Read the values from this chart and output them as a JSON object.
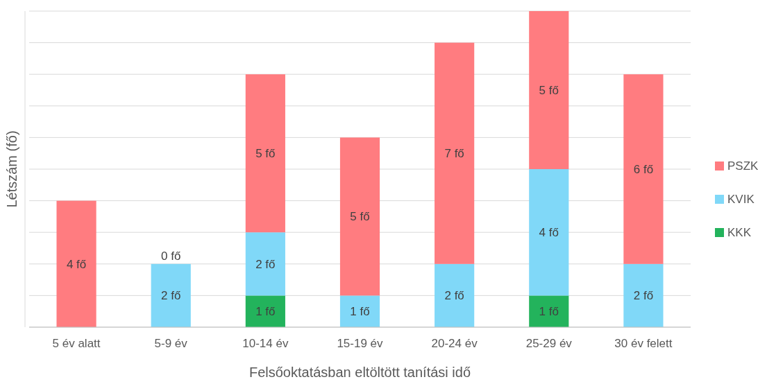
{
  "chart_data": {
    "type": "bar",
    "stacked": true,
    "xlabel": "Felsőoktatásban eltöltött tanítási idő",
    "ylabel": "Létszám (fő)",
    "categories": [
      "5 év alatt",
      "5-9 év",
      "10-14 év",
      "15-19 év",
      "20-24 év",
      "25-29 év",
      "30 év felett"
    ],
    "series": [
      {
        "name": "KKK",
        "color": "#23b35c",
        "values": [
          null,
          null,
          1,
          null,
          null,
          1,
          null
        ],
        "value_labels": [
          null,
          null,
          "1 fő",
          null,
          null,
          "1 fő",
          null
        ]
      },
      {
        "name": "KVIK",
        "color": "#80d8f8",
        "values": [
          null,
          2,
          2,
          1,
          2,
          4,
          2
        ],
        "value_labels": [
          null,
          "2 fő",
          "2 fő",
          "1 fő",
          "2 fő",
          "4 fő",
          "2 fő"
        ]
      },
      {
        "name": "PSZK",
        "color": "#ff7c80",
        "values": [
          4,
          0,
          5,
          5,
          7,
          5,
          6
        ],
        "value_labels": [
          "4 fő",
          "0 fő",
          "5 fő",
          "5 fő",
          "7 fő",
          "5 fő",
          "6 fő"
        ]
      }
    ],
    "grid": "y",
    "tick_labels": "x",
    "legend": "right"
  }
}
